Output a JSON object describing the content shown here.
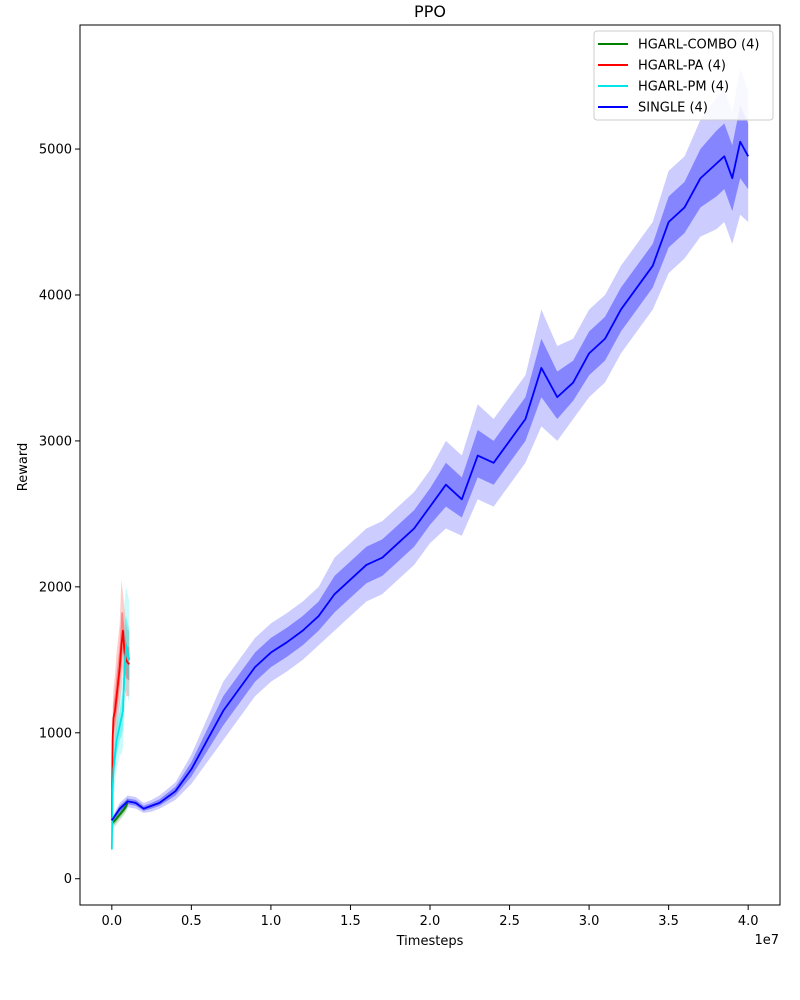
{
  "chart_data": {
    "type": "line",
    "title": "PPO",
    "xlabel": "Timesteps",
    "ylabel": "Reward",
    "x_offset_text": "1e7",
    "xlim": [
      -0.2,
      4.2
    ],
    "ylim": [
      -180,
      5850
    ],
    "x_ticks": [
      0.0,
      0.5,
      1.0,
      1.5,
      2.0,
      2.5,
      3.0,
      3.5,
      4.0
    ],
    "x_tick_labels": [
      "0.0",
      "0.5",
      "1.0",
      "1.5",
      "2.0",
      "2.5",
      "3.0",
      "3.5",
      "4.0"
    ],
    "y_ticks": [
      0,
      1000,
      2000,
      3000,
      4000,
      5000
    ],
    "y_tick_labels": [
      "0",
      "1000",
      "2000",
      "3000",
      "4000",
      "5000"
    ],
    "grid": false,
    "legend_position": "top-right",
    "series": [
      {
        "name": "HGARL-COMBO (4)",
        "color": "#008000",
        "x": [
          0.0,
          0.02,
          0.05,
          0.08,
          0.1
        ],
        "values": [
          380,
          400,
          440,
          480,
          520
        ],
        "lower": [
          340,
          360,
          400,
          440,
          480
        ],
        "upper": [
          420,
          440,
          480,
          520,
          560
        ]
      },
      {
        "name": "HGARL-PA (4)",
        "color": "#ff0000",
        "x": [
          0.0,
          0.005,
          0.01,
          0.02,
          0.03,
          0.04,
          0.05,
          0.06,
          0.07,
          0.08,
          0.09,
          0.1,
          0.11
        ],
        "values": [
          400,
          950,
          1100,
          1150,
          1250,
          1350,
          1450,
          1600,
          1700,
          1550,
          1500,
          1480,
          1470
        ],
        "lower": [
          250,
          700,
          850,
          950,
          1000,
          1100,
          1200,
          1300,
          1450,
          1300,
          1250,
          1250,
          1250
        ],
        "upper": [
          550,
          1150,
          1300,
          1400,
          1550,
          1650,
          1750,
          2050,
          1950,
          1850,
          1750,
          1700,
          1700
        ]
      },
      {
        "name": "HGARL-PM (4)",
        "color": "#00e5e5",
        "x": [
          0.0,
          0.005,
          0.01,
          0.02,
          0.03,
          0.04,
          0.05,
          0.06,
          0.07,
          0.08,
          0.09,
          0.1,
          0.11
        ],
        "values": [
          200,
          600,
          750,
          850,
          950,
          1000,
          1050,
          1100,
          1150,
          1450,
          1600,
          1550,
          1500
        ],
        "lower": [
          80,
          400,
          550,
          650,
          750,
          800,
          850,
          850,
          900,
          1150,
          1300,
          1250,
          1200
        ],
        "upper": [
          350,
          800,
          950,
          1050,
          1150,
          1200,
          1250,
          1350,
          1400,
          1900,
          2000,
          1950,
          1900
        ]
      },
      {
        "name": "SINGLE (4)",
        "color": "#0000ff",
        "x": [
          0.0,
          0.05,
          0.1,
          0.15,
          0.2,
          0.25,
          0.3,
          0.4,
          0.5,
          0.6,
          0.7,
          0.8,
          0.9,
          1.0,
          1.1,
          1.2,
          1.3,
          1.4,
          1.5,
          1.6,
          1.7,
          1.8,
          1.9,
          2.0,
          2.1,
          2.2,
          2.3,
          2.4,
          2.5,
          2.6,
          2.7,
          2.8,
          2.9,
          3.0,
          3.1,
          3.2,
          3.3,
          3.4,
          3.5,
          3.6,
          3.7,
          3.8,
          3.85,
          3.9,
          3.95,
          4.0
        ],
        "values": [
          400,
          480,
          530,
          520,
          480,
          500,
          520,
          600,
          750,
          950,
          1150,
          1300,
          1450,
          1550,
          1620,
          1700,
          1800,
          1950,
          2050,
          2150,
          2200,
          2300,
          2400,
          2550,
          2700,
          2600,
          2900,
          2850,
          3000,
          3150,
          3500,
          3300,
          3400,
          3600,
          3700,
          3900,
          4050,
          4200,
          4500,
          4600,
          4800,
          4900,
          4950,
          4800,
          5050,
          4950
        ],
        "lower": [
          380,
          440,
          490,
          480,
          450,
          460,
          480,
          540,
          650,
          800,
          950,
          1100,
          1250,
          1350,
          1420,
          1500,
          1600,
          1700,
          1800,
          1900,
          1950,
          2050,
          2150,
          2300,
          2400,
          2350,
          2600,
          2550,
          2700,
          2850,
          3100,
          3000,
          3150,
          3300,
          3400,
          3600,
          3750,
          3900,
          4150,
          4250,
          4400,
          4450,
          4500,
          4350,
          4550,
          4500
        ],
        "upper": [
          420,
          520,
          570,
          560,
          520,
          540,
          570,
          660,
          850,
          1100,
          1350,
          1500,
          1650,
          1750,
          1820,
          1900,
          2000,
          2200,
          2300,
          2400,
          2450,
          2550,
          2650,
          2800,
          3000,
          2900,
          3250,
          3150,
          3300,
          3450,
          3900,
          3650,
          3700,
          3900,
          4000,
          4200,
          4350,
          4500,
          4850,
          4950,
          5200,
          5350,
          5400,
          5250,
          5550,
          5400
        ]
      }
    ]
  }
}
